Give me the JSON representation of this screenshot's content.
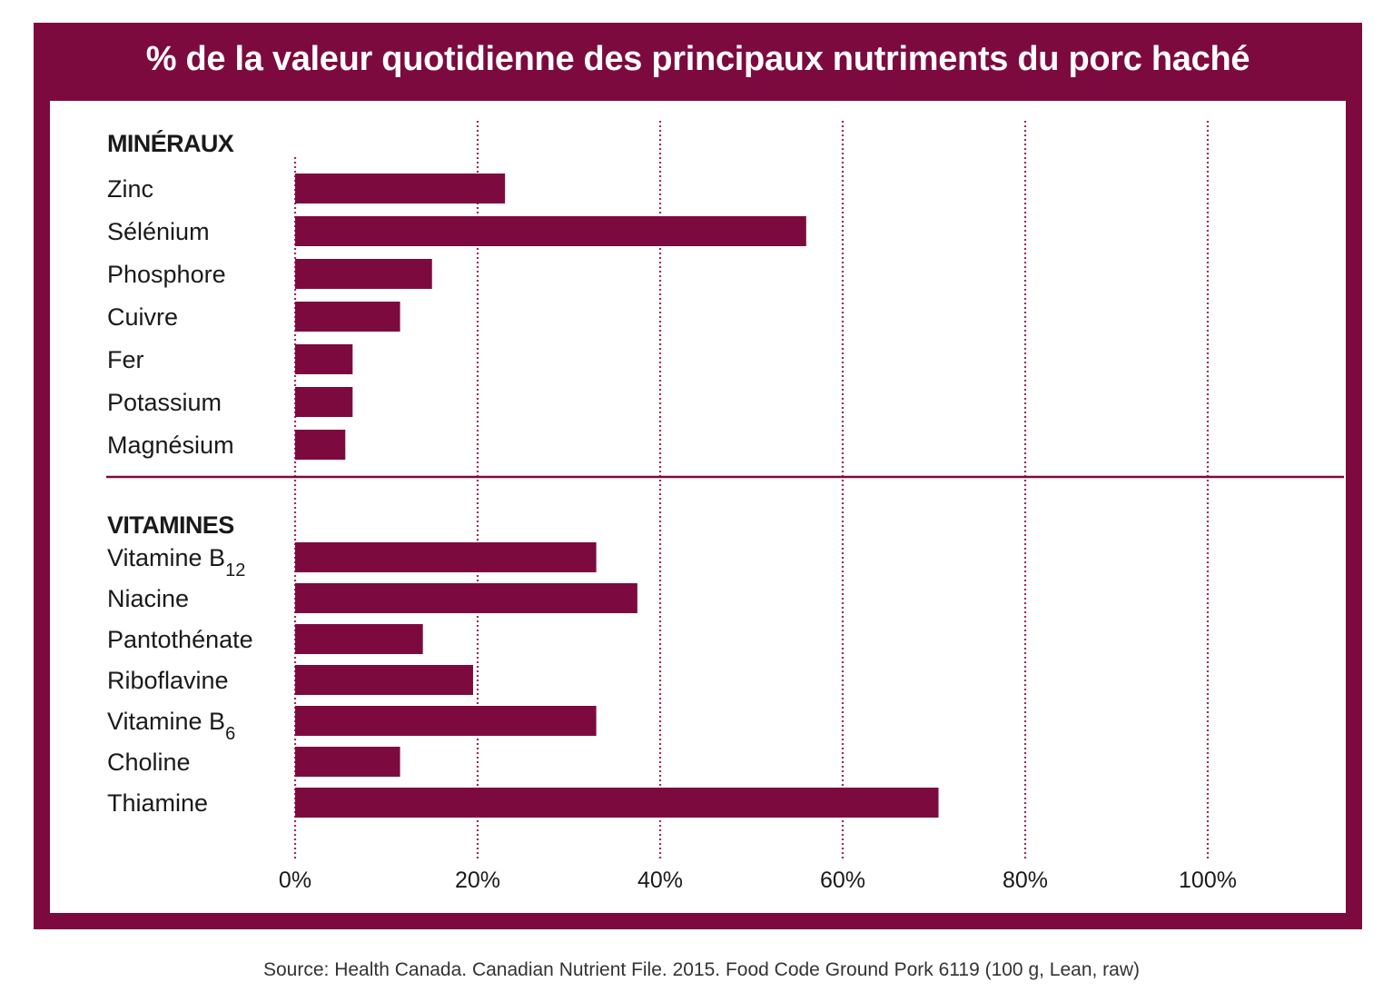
{
  "chart_data": {
    "type": "bar",
    "orientation": "horizontal",
    "title": "% de la valeur quotidienne des principaux nutriments du porc haché",
    "xlim": [
      0,
      100
    ],
    "x_ticks": [
      0,
      20,
      40,
      60,
      80,
      100
    ],
    "x_tick_labels": [
      "0%",
      "20%",
      "40%",
      "60%",
      "80%",
      "100%"
    ],
    "grid": "vertical dotted",
    "groups": [
      {
        "label": "MINÉRAUX",
        "items": [
          {
            "name": "Zinc",
            "value": 23
          },
          {
            "name": "Sélénium",
            "value": 56
          },
          {
            "name": "Phosphore",
            "value": 15
          },
          {
            "name": "Cuivre",
            "value": 11.5
          },
          {
            "name": "Fer",
            "value": 6.3
          },
          {
            "name": "Potassium",
            "value": 6.3
          },
          {
            "name": "Magnésium",
            "value": 5.5
          }
        ]
      },
      {
        "label": "VITAMINES",
        "items": [
          {
            "name": "Vitamine B",
            "sub": "12",
            "value": 33
          },
          {
            "name": "Niacine",
            "value": 37.5
          },
          {
            "name": "Pantothénate",
            "value": 14
          },
          {
            "name": "Riboflavine",
            "value": 19.5
          },
          {
            "name": "Vitamine B",
            "sub": "6",
            "value": 33
          },
          {
            "name": "Choline",
            "value": 11.5
          },
          {
            "name": "Thiamine",
            "value": 70.5
          }
        ]
      }
    ],
    "source": "Source: Health Canada. Canadian Nutrient File. 2015. Food Code Ground Pork 6119 (100 g, Lean, raw)"
  },
  "colors": {
    "brand": "#7d0a3f",
    "bar": "#7d0a3f",
    "grid": "#a0285f",
    "text": "#1a1a1a"
  }
}
